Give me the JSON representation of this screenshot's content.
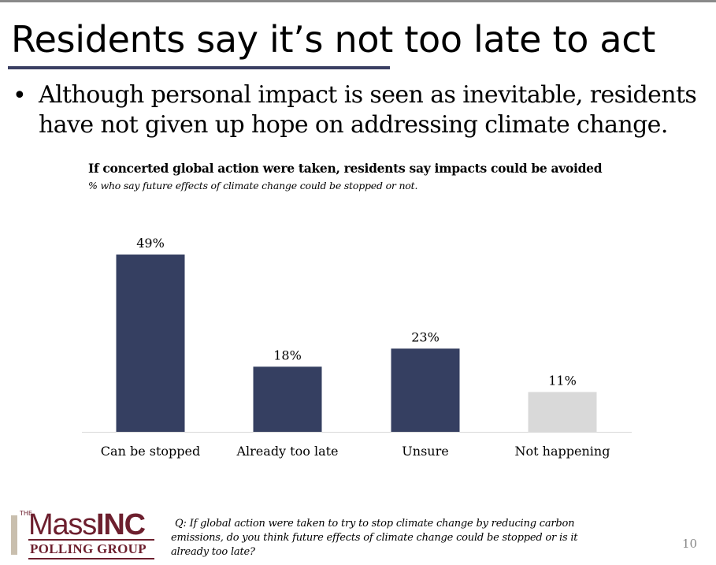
{
  "slide": {
    "title": "Residents say it’s not too late to act",
    "bullet_marker": "•",
    "bullet_lines": [
      "Although personal impact is seen as inevitable, residents",
      "have not given up hope on addressing climate change."
    ],
    "page_number": "10"
  },
  "chart_data": {
    "type": "bar",
    "title": "If concerted global action were taken, residents say impacts could be avoided",
    "subtitle": "% who say future effects of climate change could be stopped or not.",
    "categories": [
      "Can be stopped",
      "Already too late",
      "Unsure",
      "Not happening"
    ],
    "values": [
      49,
      18,
      23,
      11
    ],
    "value_labels": [
      "49%",
      "18%",
      "23%",
      "11%"
    ],
    "bar_colors": [
      "#353f61",
      "#353f61",
      "#353f61",
      "#d9d9d9"
    ],
    "xlabel": "",
    "ylabel": "",
    "ylim": [
      0,
      49
    ],
    "grid": false
  },
  "footer": {
    "question_lines": [
      "Q: If global action were taken to try to stop climate change by reducing carbon",
      "emissions, do you think future effects of climate change could be stopped or is it",
      "already too late?"
    ]
  },
  "logo": {
    "the": "THE",
    "mass": "Mass",
    "inc": "INC",
    "group": "POLLING GROUP",
    "color": "#6d1f2e"
  }
}
